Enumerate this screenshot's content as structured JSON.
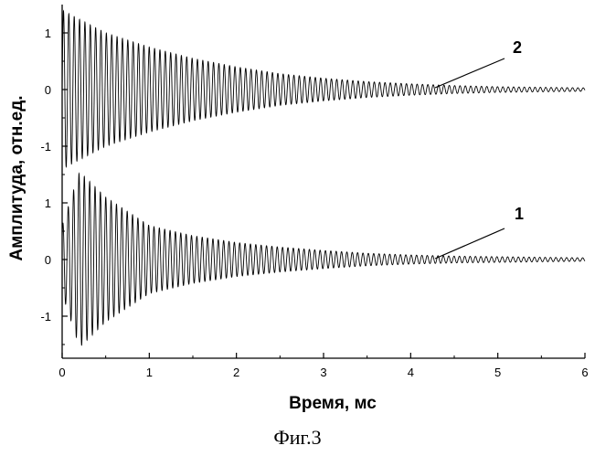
{
  "chart_data": {
    "type": "line",
    "xlabel": "Время, мс",
    "ylabel": "Амплитуда, отн.ед.",
    "xlim": [
      0,
      6
    ],
    "x_ticks": [
      0,
      1,
      2,
      3,
      4,
      5,
      6
    ],
    "grid": false,
    "legend": "none",
    "series": [
      {
        "label": "2",
        "y_ticks": [
          -1,
          0,
          1
        ],
        "ylim": [
          -1.5,
          1.5
        ],
        "decay_envelope": {
          "x": [
            0,
            0.5,
            1,
            1.5,
            2,
            2.5,
            3,
            3.5,
            4,
            4.5,
            5,
            5.5,
            6
          ],
          "y": [
            1.4,
            1.0,
            0.75,
            0.55,
            0.4,
            0.28,
            0.2,
            0.14,
            0.1,
            0.07,
            0.05,
            0.04,
            0.03
          ]
        }
      },
      {
        "label": "1",
        "y_ticks": [
          -1,
          0,
          1
        ],
        "ylim": [
          -1.75,
          1.5
        ],
        "decay_envelope": {
          "x": [
            0,
            0.2,
            0.5,
            1,
            1.5,
            2,
            2.5,
            3,
            3.5,
            4,
            4.5,
            5,
            5.5,
            6
          ],
          "y": [
            0.6,
            1.55,
            1.1,
            0.6,
            0.42,
            0.3,
            0.22,
            0.16,
            0.11,
            0.08,
            0.06,
            0.05,
            0.04,
            0.03
          ]
        }
      }
    ]
  },
  "caption": "Фиг.3"
}
